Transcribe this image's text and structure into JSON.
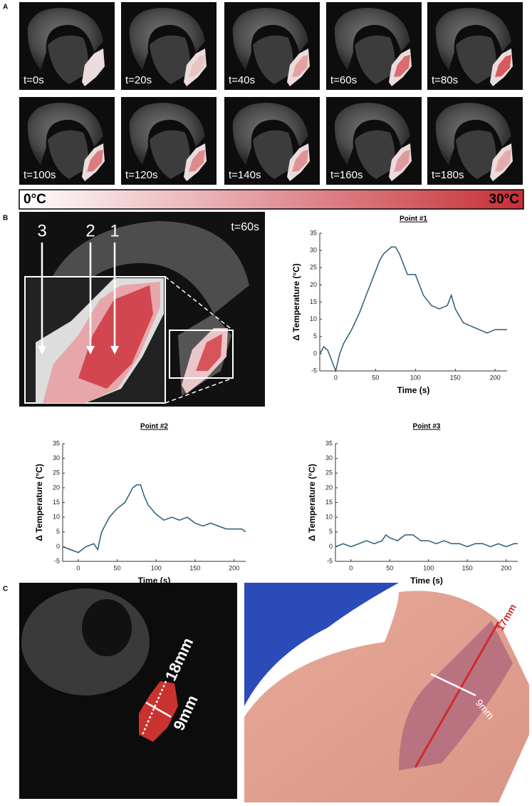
{
  "panels": {
    "a": "A",
    "b": "B",
    "c": "C"
  },
  "frames": [
    "t=0s",
    "t=20s",
    "t=40s",
    "t=60s",
    "t=80s",
    "t=100s",
    "t=120s",
    "t=140s",
    "t=160s",
    "t=180s"
  ],
  "colorbar": {
    "min_label": "0°C",
    "max_label": "30°C"
  },
  "panel_b": {
    "time": "t=60s",
    "points": [
      "3",
      "2",
      "1"
    ]
  },
  "panel_c": {
    "mri_length": "18mm",
    "mri_width": "9mm",
    "photo_length": "17mm",
    "photo_width": "9mm"
  },
  "chart_data": [
    {
      "type": "line",
      "title": "Point #1",
      "x_label": "Time (s)",
      "y_label": "Δ Temperature (°C)",
      "color": "#2a5d7a",
      "x": [
        -20,
        -15,
        -10,
        -5,
        0,
        5,
        10,
        20,
        30,
        40,
        50,
        55,
        60,
        65,
        70,
        75,
        80,
        85,
        90,
        95,
        100,
        105,
        110,
        120,
        130,
        140,
        145,
        150,
        160,
        170,
        180,
        190,
        200,
        210,
        215
      ],
      "values": [
        0,
        2,
        1,
        -2,
        -5,
        0,
        3,
        7,
        12,
        18,
        24,
        27,
        29,
        30,
        31,
        31,
        29,
        26,
        23,
        23,
        23,
        20,
        17,
        14,
        13,
        14,
        17,
        13,
        9,
        8,
        7,
        6,
        7,
        7,
        7
      ],
      "xlim": [
        -20,
        215
      ],
      "xticks": [
        0,
        50,
        100,
        150,
        200
      ],
      "ylim": [
        -5,
        35
      ],
      "yticks": [
        -5,
        0,
        5,
        10,
        15,
        20,
        25,
        30,
        35
      ]
    },
    {
      "type": "line",
      "title": "Point #2",
      "x_label": "Time (s)",
      "y_label": "Δ Temperature (°C)",
      "color": "#2a5d7a",
      "x": [
        -20,
        -10,
        0,
        10,
        20,
        25,
        30,
        40,
        50,
        60,
        70,
        75,
        80,
        85,
        90,
        100,
        110,
        120,
        130,
        140,
        150,
        160,
        170,
        180,
        190,
        200,
        210,
        215
      ],
      "values": [
        0,
        -1,
        -2,
        0,
        1,
        -1,
        5,
        10,
        13,
        15,
        20,
        21,
        21,
        17,
        14,
        11,
        9,
        10,
        9,
        10,
        8,
        7,
        8,
        7,
        6,
        6,
        6,
        5
      ],
      "xlim": [
        -20,
        215
      ],
      "xticks": [
        0,
        50,
        100,
        150,
        200
      ],
      "ylim": [
        -5,
        35
      ],
      "yticks": [
        -5,
        0,
        5,
        10,
        15,
        20,
        25,
        30,
        35
      ]
    },
    {
      "type": "line",
      "title": "Point #3",
      "x_label": "Time (s)",
      "y_label": "Δ Temperature (°C)",
      "color": "#2a5d7a",
      "x": [
        -20,
        -10,
        0,
        10,
        20,
        30,
        40,
        45,
        50,
        60,
        70,
        80,
        90,
        100,
        110,
        120,
        130,
        140,
        150,
        160,
        170,
        180,
        190,
        200,
        210,
        215
      ],
      "values": [
        0,
        1,
        0,
        1,
        2,
        1,
        2,
        4,
        3,
        2,
        4,
        4,
        2,
        2,
        1,
        2,
        1,
        1,
        0,
        1,
        1,
        0,
        1,
        0,
        1,
        1
      ],
      "xlim": [
        -20,
        215
      ],
      "xticks": [
        0,
        50,
        100,
        150,
        200
      ],
      "ylim": [
        -5,
        35
      ],
      "yticks": [
        -5,
        0,
        5,
        10,
        15,
        20,
        25,
        30,
        35
      ]
    }
  ]
}
